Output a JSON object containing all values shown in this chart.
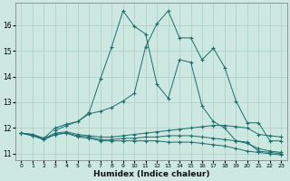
{
  "xlabel": "Humidex (Indice chaleur)",
  "xlim": [
    -0.5,
    23.5
  ],
  "ylim": [
    10.75,
    16.85
  ],
  "yticks": [
    11,
    12,
    13,
    14,
    15,
    16
  ],
  "xticks": [
    0,
    1,
    2,
    3,
    4,
    5,
    6,
    7,
    8,
    9,
    10,
    11,
    12,
    13,
    14,
    15,
    16,
    17,
    18,
    19,
    20,
    21,
    22,
    23
  ],
  "bg_color": "#cce8e0",
  "grid_color": "#aacfc5",
  "line_color": "#1a6e6e",
  "line1_x": [
    0,
    1,
    2,
    3,
    4,
    5,
    6,
    7,
    8,
    9,
    10,
    11,
    12,
    13,
    14,
    15,
    16,
    17,
    18,
    19,
    20,
    21,
    22,
    23
  ],
  "line1_y": [
    11.8,
    11.75,
    11.6,
    11.8,
    11.85,
    11.75,
    11.7,
    11.65,
    11.65,
    11.7,
    11.75,
    11.8,
    11.85,
    11.9,
    11.95,
    12.0,
    12.05,
    12.1,
    12.1,
    12.05,
    12.0,
    11.75,
    11.7,
    11.65
  ],
  "line2_x": [
    0,
    1,
    2,
    3,
    4,
    5,
    6,
    7,
    8,
    9,
    10,
    11,
    12,
    13,
    14,
    15,
    16,
    17,
    18,
    19,
    20,
    21,
    22,
    23
  ],
  "line2_y": [
    11.8,
    11.7,
    11.55,
    11.75,
    11.8,
    11.7,
    11.65,
    11.55,
    11.55,
    11.6,
    11.6,
    11.65,
    11.65,
    11.7,
    11.7,
    11.7,
    11.65,
    11.6,
    11.55,
    11.5,
    11.4,
    11.2,
    11.1,
    11.05
  ],
  "line3_x": [
    0,
    1,
    2,
    3,
    4,
    5,
    6,
    7,
    8,
    9,
    10,
    11,
    12,
    13,
    14,
    15,
    16,
    17,
    18,
    19,
    20,
    21,
    22,
    23
  ],
  "line3_y": [
    11.8,
    11.7,
    11.55,
    11.75,
    11.8,
    11.65,
    11.6,
    11.5,
    11.5,
    11.5,
    11.5,
    11.5,
    11.5,
    11.45,
    11.45,
    11.45,
    11.4,
    11.35,
    11.3,
    11.2,
    11.1,
    11.05,
    11.0,
    10.95
  ],
  "line4_x": [
    3,
    4,
    5,
    6,
    7,
    8,
    9,
    10,
    11,
    12,
    13,
    14,
    15,
    16,
    17,
    18,
    19,
    20,
    21,
    22,
    23
  ],
  "line4_y": [
    11.9,
    12.1,
    12.25,
    12.55,
    12.65,
    12.8,
    13.05,
    13.35,
    15.15,
    16.05,
    16.55,
    15.5,
    15.5,
    14.65,
    15.1,
    14.35,
    13.05,
    12.2,
    12.2,
    11.5,
    11.5
  ],
  "line5_x": [
    0,
    1,
    2,
    3,
    4,
    5,
    6,
    7,
    8,
    9,
    10,
    11,
    12,
    13,
    14,
    15,
    16,
    17,
    18,
    19,
    20,
    21,
    22,
    23
  ],
  "line5_y": [
    11.8,
    11.75,
    11.6,
    12.0,
    12.15,
    12.25,
    12.6,
    13.9,
    15.15,
    16.55,
    15.95,
    15.65,
    13.7,
    13.15,
    14.65,
    14.55,
    12.85,
    12.25,
    12.0,
    11.5,
    11.45,
    11.1,
    11.05,
    11.0
  ]
}
